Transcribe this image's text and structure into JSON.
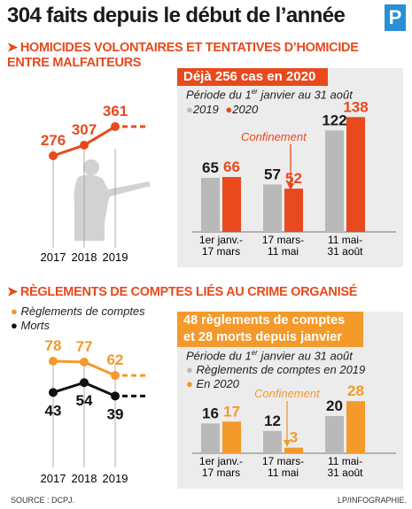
{
  "title": "304 faits depuis le début de l’année",
  "logo": "P",
  "section1": {
    "title_line1": "HOMICIDES VOLONTAIRES ET TENTATIVES D’HOMICIDE",
    "title_line2": "ENTRE MALFAITEURS",
    "banner": "Déjà 256 cas en 2020",
    "period_prefix": "Période du 1",
    "period_sup": "er",
    "period_suffix": " janvier au 31 août",
    "legend_2019": "2019",
    "legend_2020": "2020",
    "confinement": "Confinement"
  },
  "section2": {
    "title": "RÈGLEMENTS DE COMPTES LIÉS AU CRIME ORGANISÉ",
    "legend_reglements": "Règlements de comptes",
    "legend_morts": "Morts",
    "banner_line1": "48 règlements de comptes",
    "banner_line2": "et 28 morts depuis janvier",
    "period_prefix": "Période du 1",
    "period_sup": "er",
    "period_suffix": " janvier au 31 août",
    "legend_2019": "Règlements de comptes en 2019",
    "legend_2020": "En 2020",
    "confinement": "Confinement"
  },
  "source": "SOURCE : DCPJ.",
  "credit": "LP/INFOGRAPHIE.",
  "colors": {
    "orange": "#e8491d",
    "light_orange": "#f39a2b",
    "gray": "#b9b9b9",
    "panel": "#ececec",
    "blue": "#2a8fd6"
  },
  "chart_data": [
    {
      "type": "line",
      "x": [
        "2017",
        "2018",
        "2019"
      ],
      "series": [
        {
          "values": [
            276,
            307,
            361
          ]
        }
      ]
    },
    {
      "type": "bar",
      "categories": [
        [
          "1er janv.-",
          "17 mars"
        ],
        [
          "17 mars-",
          "11 mai"
        ],
        [
          "11 mai-",
          "31 août"
        ]
      ],
      "series": [
        {
          "name": "2019",
          "values": [
            65,
            57,
            122
          ]
        },
        {
          "name": "2020",
          "values": [
            66,
            52,
            138
          ]
        }
      ]
    },
    {
      "type": "line",
      "x": [
        "2017",
        "2018",
        "2019"
      ],
      "series": [
        {
          "name": "Règlements de comptes",
          "values": [
            78,
            77,
            62
          ]
        },
        {
          "name": "Morts",
          "values": [
            43,
            54,
            39
          ]
        }
      ]
    },
    {
      "type": "bar",
      "categories": [
        [
          "1er janv.-",
          "17 mars"
        ],
        [
          "17 mars-",
          "11 mai"
        ],
        [
          "11 mai-",
          "31 août"
        ]
      ],
      "series": [
        {
          "name": "Règlements de comptes en 2019",
          "values": [
            16,
            12,
            20
          ]
        },
        {
          "name": "En 2020",
          "values": [
            17,
            3,
            28
          ]
        }
      ]
    }
  ]
}
